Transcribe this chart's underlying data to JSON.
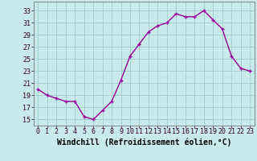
{
  "x": [
    0,
    1,
    2,
    3,
    4,
    5,
    6,
    7,
    8,
    9,
    10,
    11,
    12,
    13,
    14,
    15,
    16,
    17,
    18,
    19,
    20,
    21,
    22,
    23
  ],
  "y": [
    20,
    19,
    18.5,
    18,
    18,
    15.5,
    15,
    16.5,
    18,
    21.5,
    25.5,
    27.5,
    29.5,
    30.5,
    31,
    32.5,
    32,
    32,
    33,
    31.5,
    30,
    25.5,
    23.5,
    23
  ],
  "line_color": "#990099",
  "marker": "+",
  "marker_size": 3,
  "marker_lw": 1.0,
  "bg_color": "#c8eaea",
  "grid_color": "#a0cccc",
  "xlabel": "Windchill (Refroidissement éolien,°C)",
  "xlabel_fontsize": 7,
  "ylabel_ticks": [
    15,
    17,
    19,
    21,
    23,
    25,
    27,
    29,
    31,
    33
  ],
  "xlim": [
    -0.5,
    23.5
  ],
  "ylim": [
    14.0,
    34.5
  ],
  "tick_fontsize": 6,
  "linewidth": 1.0,
  "xtick_labels": [
    "0",
    "1",
    "2",
    "3",
    "4",
    "5",
    "6",
    "7",
    "8",
    "9",
    "10",
    "11",
    "12",
    "13",
    "14",
    "15",
    "16",
    "17",
    "18",
    "19",
    "20",
    "21",
    "22",
    "23"
  ]
}
